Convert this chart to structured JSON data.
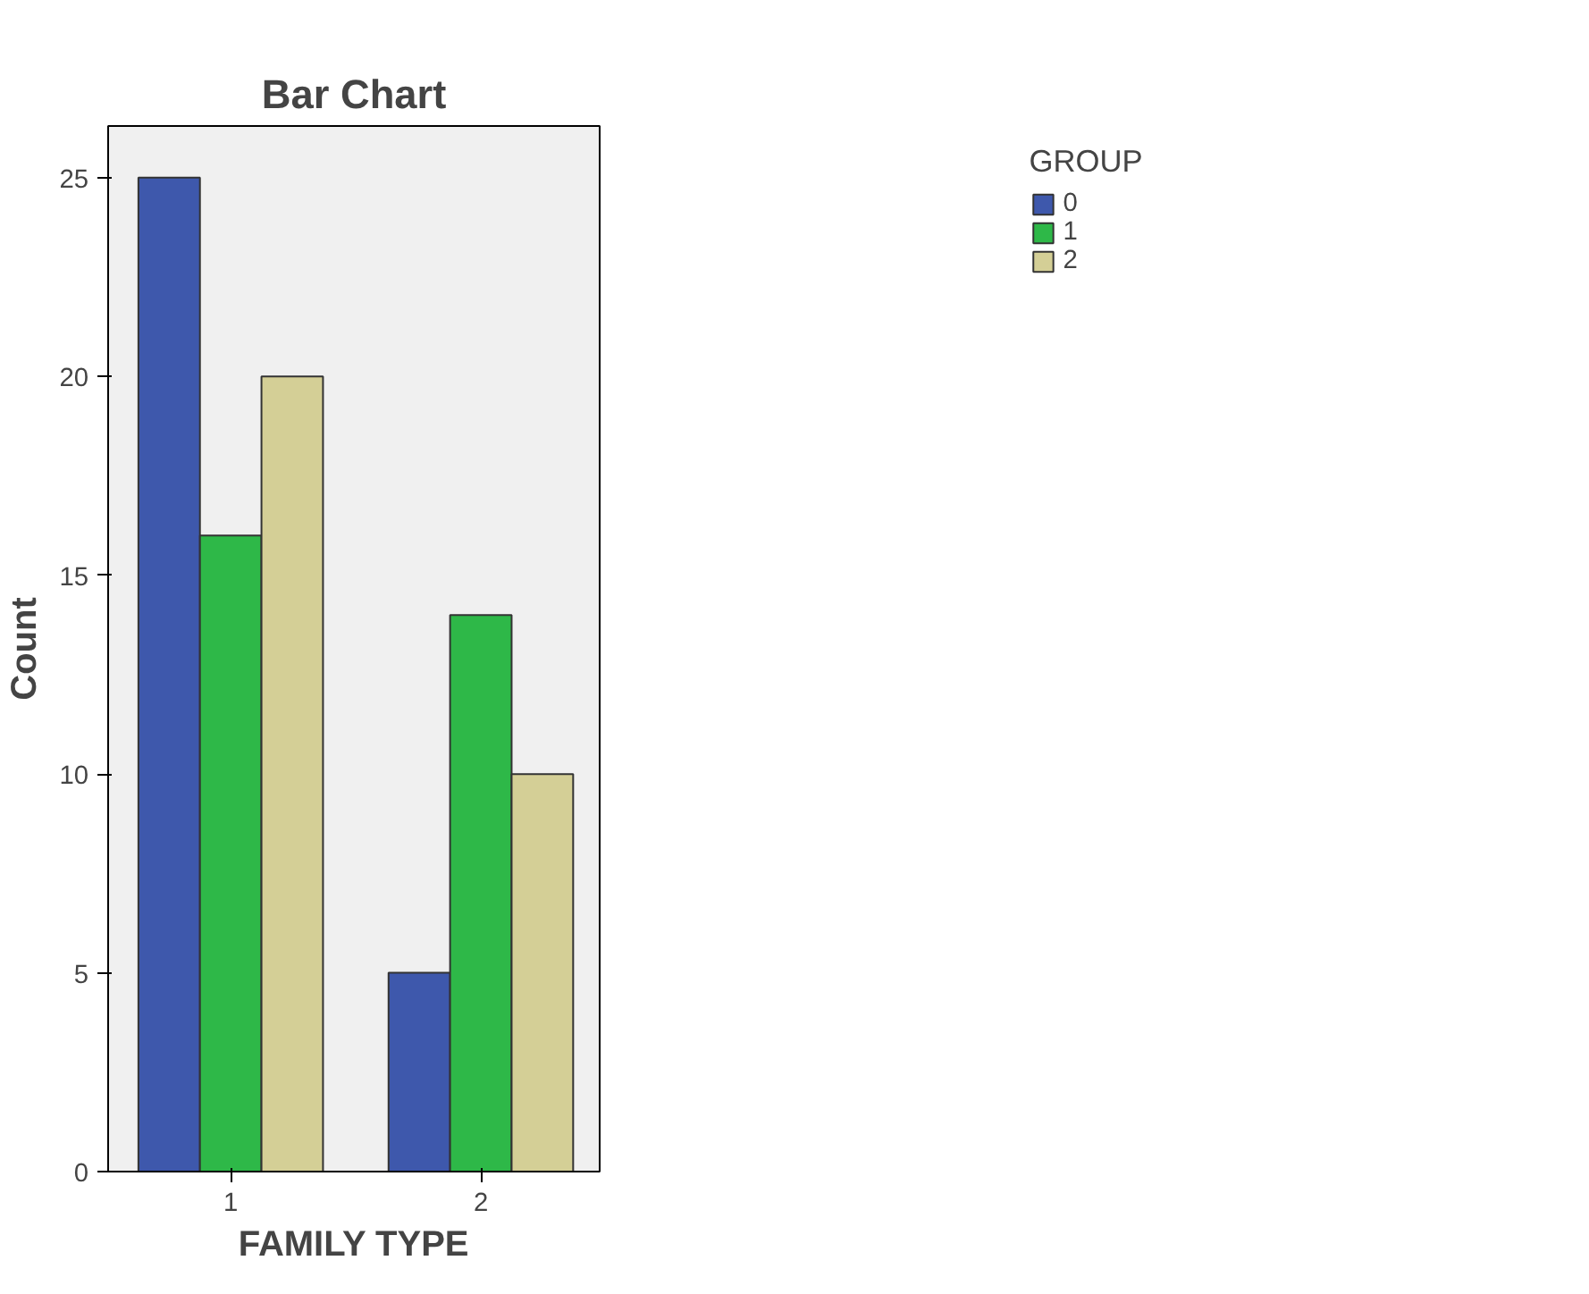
{
  "chart_data": {
    "type": "bar",
    "title": "Bar Chart",
    "xlabel": "FAMILY TYPE",
    "ylabel": "Count",
    "legend_title": "GROUP",
    "categories": [
      "1",
      "2"
    ],
    "series": [
      {
        "name": "0",
        "color": "#3e58ac",
        "values": [
          25,
          5
        ]
      },
      {
        "name": "1",
        "color": "#2eb848",
        "values": [
          16,
          14
        ]
      },
      {
        "name": "2",
        "color": "#d4cf96",
        "values": [
          20,
          10
        ]
      }
    ],
    "ylim": [
      0,
      26.3
    ],
    "yticks": [
      0,
      5,
      10,
      15,
      20,
      25
    ],
    "grid": false,
    "legend": "top right"
  }
}
